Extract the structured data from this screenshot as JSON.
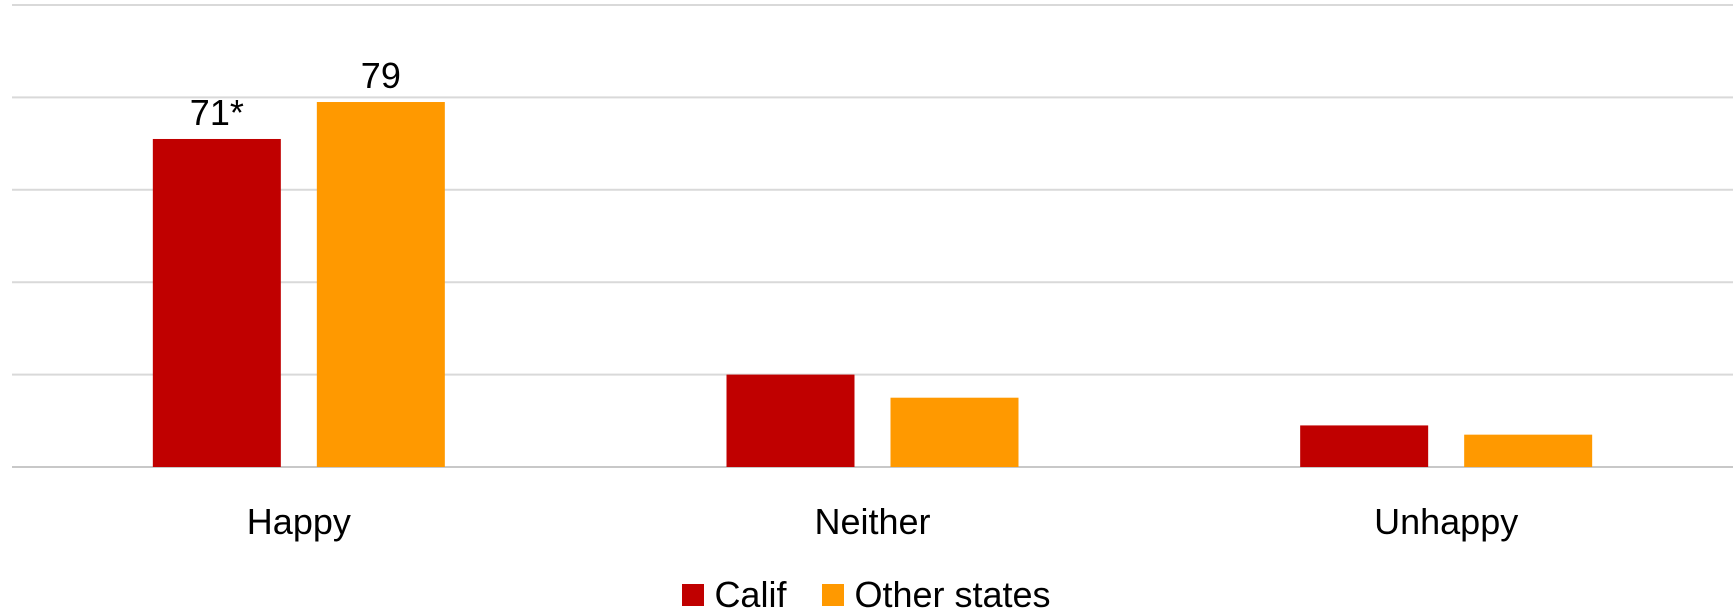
{
  "chart_data": {
    "type": "bar",
    "categories": [
      "Happy",
      "Neither",
      "Unhappy"
    ],
    "series": [
      {
        "name": "Calif",
        "color": "#C00000",
        "values": [
          71,
          20,
          9
        ],
        "labels": [
          "71*",
          null,
          null
        ]
      },
      {
        "name": "Other states",
        "color": "#FF9900",
        "values": [
          79,
          15,
          7
        ],
        "labels": [
          "79",
          null,
          null
        ]
      }
    ],
    "ylim": [
      0,
      100
    ],
    "grid": true,
    "legend": "bottom-center"
  }
}
